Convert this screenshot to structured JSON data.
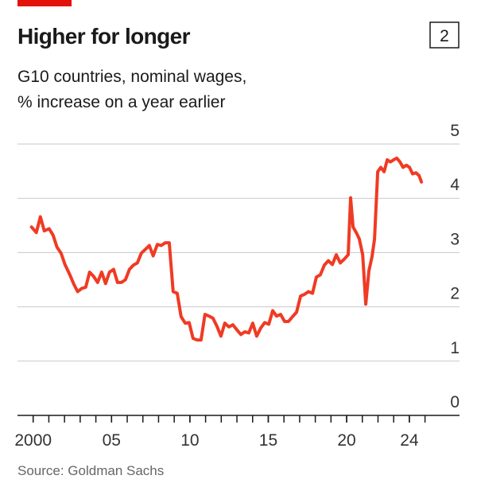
{
  "chart_data": {
    "type": "line",
    "title": "Higher for longer",
    "badge": "2",
    "subtitle": [
      "G10 countries, nominal wages,",
      "% increase on a year earlier"
    ],
    "source": "Source: Goldman Sachs",
    "series": [
      {
        "color": "#ef3b24",
        "x": [
          1999.9,
          2000.2,
          2000.46,
          2000.71,
          2001.02,
          2001.27,
          2001.52,
          2001.78,
          2002.03,
          2002.34,
          2002.59,
          2002.84,
          2003.1,
          2003.35,
          2003.6,
          2003.86,
          2004.11,
          2004.37,
          2004.62,
          2004.87,
          2005.13,
          2005.38,
          2005.63,
          2005.89,
          2006.14,
          2006.4,
          2006.65,
          2006.9,
          2007.16,
          2007.41,
          2007.66,
          2007.92,
          2008.17,
          2008.43,
          2008.68,
          2008.93,
          2009.19,
          2009.44,
          2009.7,
          2009.95,
          2010.2,
          2010.46,
          2010.71,
          2010.96,
          2011.22,
          2011.47,
          2011.73,
          2011.98,
          2012.23,
          2012.49,
          2012.74,
          2012.99,
          2013.25,
          2013.5,
          2013.76,
          2014.01,
          2014.26,
          2014.52,
          2014.77,
          2015.03,
          2015.28,
          2015.53,
          2015.79,
          2016.04,
          2016.29,
          2016.55,
          2016.8,
          2017.06,
          2017.31,
          2017.56,
          2017.82,
          2018.07,
          2018.32,
          2018.58,
          2018.83,
          2019.09,
          2019.34,
          2019.59,
          2019.85,
          2020.1,
          2020.25,
          2020.41,
          2020.61,
          2020.81,
          2021.02,
          2021.22,
          2021.42,
          2021.62,
          2021.78,
          2021.98,
          2022.18,
          2022.39,
          2022.59,
          2022.79,
          2023.0,
          2023.2,
          2023.4,
          2023.6,
          2023.81,
          2024.01,
          2024.21,
          2024.42,
          2024.62,
          2024.77
        ],
        "values": [
          3.47,
          3.37,
          3.66,
          3.4,
          3.44,
          3.32,
          3.1,
          2.99,
          2.78,
          2.59,
          2.42,
          2.28,
          2.34,
          2.36,
          2.64,
          2.56,
          2.45,
          2.64,
          2.43,
          2.64,
          2.69,
          2.45,
          2.45,
          2.5,
          2.69,
          2.77,
          2.81,
          2.99,
          3.06,
          3.13,
          2.94,
          3.15,
          3.13,
          3.18,
          3.18,
          2.28,
          2.25,
          1.82,
          1.7,
          1.71,
          1.42,
          1.39,
          1.39,
          1.86,
          1.83,
          1.79,
          1.64,
          1.46,
          1.7,
          1.63,
          1.67,
          1.58,
          1.49,
          1.54,
          1.52,
          1.7,
          1.46,
          1.61,
          1.71,
          1.68,
          1.93,
          1.83,
          1.86,
          1.73,
          1.73,
          1.82,
          1.9,
          2.2,
          2.23,
          2.28,
          2.25,
          2.55,
          2.59,
          2.77,
          2.85,
          2.78,
          2.96,
          2.81,
          2.88,
          2.96,
          4.01,
          3.47,
          3.37,
          3.25,
          2.96,
          2.05,
          2.66,
          2.93,
          3.25,
          4.49,
          4.57,
          4.49,
          4.71,
          4.67,
          4.71,
          4.74,
          4.67,
          4.57,
          4.61,
          4.57,
          4.45,
          4.47,
          4.42,
          4.3
        ]
      }
    ],
    "xlim": [
      1999,
      2027.2
    ],
    "xticks": [
      {
        "value": 2000,
        "label": "2000"
      },
      {
        "value": 2005,
        "label": "05"
      },
      {
        "value": 2010,
        "label": "10"
      },
      {
        "value": 2015,
        "label": "15"
      },
      {
        "value": 2020,
        "label": "20"
      },
      {
        "value": 2024,
        "label": "24"
      }
    ],
    "xminorticks": [
      2000,
      2001,
      2002,
      2003,
      2004,
      2005,
      2006,
      2007,
      2008,
      2009,
      2010,
      2011,
      2012,
      2013,
      2014,
      2015,
      2016,
      2017,
      2018,
      2019,
      2020,
      2021,
      2022,
      2023,
      2024,
      2025
    ],
    "ylim": [
      0,
      5.0
    ],
    "yticks": [
      0,
      1,
      2,
      3,
      4,
      5
    ],
    "grid": true
  }
}
